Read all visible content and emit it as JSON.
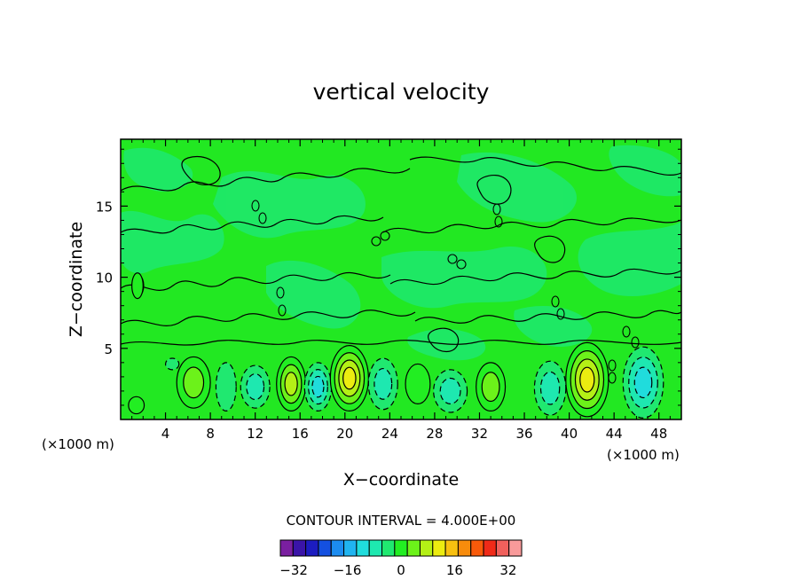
{
  "chart_data": {
    "type": "heatmap",
    "title": "vertical velocity",
    "xlabel": "X−coordinate",
    "ylabel": "Z−coordinate",
    "x_unit_left": "(×1000 m)",
    "x_unit_right": "(×1000 m)",
    "xlim": [
      0,
      50
    ],
    "ylim": [
      0,
      19.7
    ],
    "x_ticks": [
      4,
      8,
      12,
      16,
      20,
      24,
      28,
      32,
      36,
      40,
      44,
      48
    ],
    "x_tick_labels": [
      "4",
      "8",
      "12",
      "16",
      "20",
      "24",
      "28",
      "32",
      "36",
      "40",
      "44",
      "48"
    ],
    "y_ticks": [
      5,
      10,
      15
    ],
    "y_tick_labels": [
      "5",
      "10",
      "15"
    ],
    "contour_interval_text": "CONTOUR INTERVAL = 4.000E+00",
    "contour_interval": 4.0,
    "colorbar": {
      "levels": [
        -36,
        -32,
        -28,
        -24,
        -20,
        -16,
        -12,
        -8,
        -4,
        0,
        4,
        8,
        12,
        16,
        20,
        24,
        28,
        32,
        36
      ],
      "colors": [
        "#7a1fa0",
        "#3a14a8",
        "#1c1cc0",
        "#1450e0",
        "#1c8cf0",
        "#20b4f0",
        "#20dcdc",
        "#1ee8b0",
        "#20e870",
        "#22ee22",
        "#6cf21a",
        "#b4f016",
        "#ecec10",
        "#f8c010",
        "#f88c0c",
        "#f85a0a",
        "#f02a18",
        "#f0605c",
        "#f89a9a"
      ],
      "tick_values": [
        -32,
        -16,
        0,
        16,
        32
      ],
      "tick_labels": [
        "−32",
        "−16",
        "0",
        "16",
        "32"
      ]
    },
    "background_fill": "#22e822",
    "cells": [
      {
        "x": 6.5,
        "z": 2.6,
        "rx": 1.5,
        "rz": 1.8,
        "v": 8
      },
      {
        "x": 9.4,
        "z": 2.3,
        "rx": 0.9,
        "rz": 1.7,
        "v": -4
      },
      {
        "x": 12.0,
        "z": 2.3,
        "rx": 1.3,
        "rz": 1.5,
        "v": -8
      },
      {
        "x": 15.2,
        "z": 2.5,
        "rx": 1.3,
        "rz": 1.9,
        "v": 12
      },
      {
        "x": 17.6,
        "z": 2.3,
        "rx": 1.2,
        "rz": 1.7,
        "v": -12
      },
      {
        "x": 20.4,
        "z": 2.9,
        "rx": 1.7,
        "rz": 2.3,
        "v": 16
      },
      {
        "x": 23.4,
        "z": 2.5,
        "rx": 1.3,
        "rz": 1.8,
        "v": -8
      },
      {
        "x": 26.5,
        "z": 2.5,
        "rx": 1.1,
        "rz": 1.4,
        "v": 4
      },
      {
        "x": 29.4,
        "z": 2.0,
        "rx": 1.5,
        "rz": 1.5,
        "v": -8
      },
      {
        "x": 33.0,
        "z": 2.3,
        "rx": 1.3,
        "rz": 1.7,
        "v": 8
      },
      {
        "x": 38.3,
        "z": 2.2,
        "rx": 1.4,
        "rz": 1.9,
        "v": -8
      },
      {
        "x": 41.6,
        "z": 2.8,
        "rx": 1.9,
        "rz": 2.6,
        "v": 16
      },
      {
        "x": 46.6,
        "z": 2.6,
        "rx": 1.8,
        "rz": 2.5,
        "v": -12
      },
      {
        "x": 1.4,
        "z": 1.0,
        "rx": 0.7,
        "rz": 0.6,
        "v": 4
      },
      {
        "x": 1.5,
        "z": 9.4,
        "rx": 0.5,
        "rz": 0.9,
        "v": 4
      },
      {
        "x": 4.6,
        "z": 3.9,
        "rx": 0.6,
        "rz": 0.4,
        "v": -4
      }
    ]
  }
}
